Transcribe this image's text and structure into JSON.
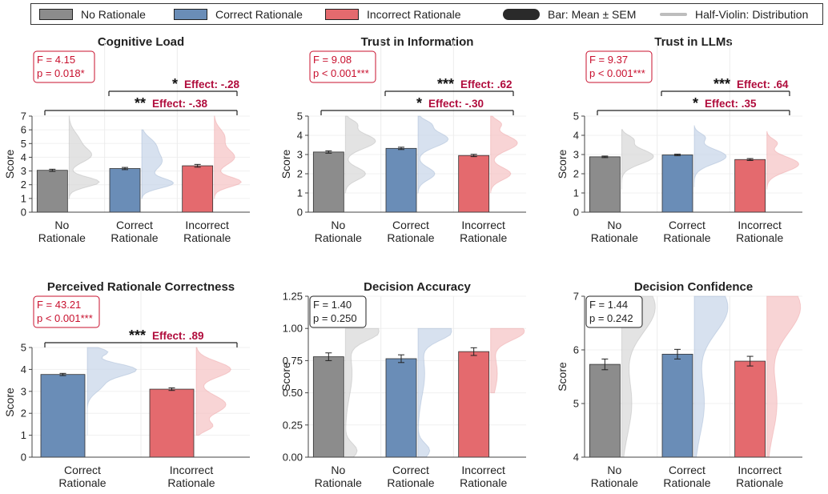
{
  "legend": {
    "items": [
      {
        "kind": "swatch",
        "label": "No Rationale",
        "color": "#8c8c8c"
      },
      {
        "kind": "swatch",
        "label": "Correct Rationale",
        "color": "#6a8db7"
      },
      {
        "kind": "swatch",
        "label": "Incorrect Rationale",
        "color": "#e46a6e"
      },
      {
        "kind": "pill",
        "label": "Bar: Mean ± SEM"
      },
      {
        "kind": "line",
        "label": "Half-Violin: Distribution"
      }
    ]
  },
  "colors": {
    "No Rationale": {
      "bar": "#8c8c8c",
      "violin": "#d9d9d9"
    },
    "Correct Rationale": {
      "bar": "#6a8db7",
      "violin": "#c9d7ea"
    },
    "Incorrect Rationale": {
      "bar": "#e46a6e",
      "violin": "#f6c6c7"
    },
    "stats_red": "#c8102e",
    "sig_red": "#b00c3c"
  },
  "chart_data": [
    {
      "type": "bar",
      "title": "Cognitive Load",
      "ylabel": "Score",
      "categories": [
        "No\nRationale",
        "Correct\nRationale",
        "Incorrect\nRationale"
      ],
      "values": [
        3.05,
        3.18,
        3.38
      ],
      "sem": [
        0.08,
        0.08,
        0.1
      ],
      "ylim": [
        0,
        7
      ],
      "yticks": [
        0,
        1,
        2,
        3,
        4,
        5,
        6,
        7
      ],
      "stats": {
        "F": "F = 4.15",
        "p": "p = 0.018*",
        "significant": true
      },
      "violins": [
        {
          "range": [
            1,
            7
          ],
          "bulges": [
            [
              2.2,
              0.9,
              0.5
            ],
            [
              4.1,
              0.6,
              0.7
            ],
            [
              5.2,
              0.3,
              0.9
            ]
          ]
        },
        {
          "range": [
            1,
            6
          ],
          "bulges": [
            [
              2.1,
              0.9,
              0.5
            ],
            [
              3.7,
              0.6,
              1.0
            ],
            [
              5.0,
              0.3,
              0.7
            ]
          ]
        },
        {
          "range": [
            1,
            7
          ],
          "bulges": [
            [
              2.2,
              0.8,
              0.5
            ],
            [
              4.0,
              0.6,
              0.8
            ],
            [
              5.5,
              0.3,
              0.8
            ]
          ]
        }
      ],
      "brackets": [
        {
          "from": 1,
          "to": 2,
          "stars": "*",
          "effect": "Effect: -.28",
          "y": 6.95
        },
        {
          "from": 0,
          "to": 2,
          "stars": "**",
          "effect": "Effect: -.38",
          "y": 5.9
        }
      ]
    },
    {
      "type": "bar",
      "title": "Trust in Information",
      "ylabel": "Score",
      "categories": [
        "No\nRationale",
        "Correct\nRationale",
        "Incorrect\nRationale"
      ],
      "values": [
        3.13,
        3.32,
        2.95
      ],
      "sem": [
        0.06,
        0.06,
        0.06
      ],
      "ylim": [
        0,
        5
      ],
      "yticks": [
        0,
        1,
        2,
        3,
        4,
        5
      ],
      "stats": {
        "F": "F = 9.08",
        "p": "p < 0.001***",
        "significant": true
      },
      "violins": [
        {
          "range": [
            1,
            5
          ],
          "bulges": [
            [
              2.0,
              0.6,
              0.45
            ],
            [
              3.7,
              0.9,
              0.55
            ],
            [
              4.6,
              0.3,
              0.3
            ]
          ]
        },
        {
          "range": [
            1,
            5
          ],
          "bulges": [
            [
              2.0,
              0.5,
              0.45
            ],
            [
              3.8,
              0.9,
              0.55
            ],
            [
              4.6,
              0.3,
              0.3
            ]
          ]
        },
        {
          "range": [
            1,
            5
          ],
          "bulges": [
            [
              2.0,
              0.6,
              0.45
            ],
            [
              3.6,
              0.8,
              0.55
            ],
            [
              4.6,
              0.3,
              0.3
            ]
          ]
        }
      ],
      "brackets": [
        {
          "from": 1,
          "to": 2,
          "stars": "***",
          "effect": "Effect: .62",
          "y": 6.3
        },
        {
          "from": 0,
          "to": 1,
          "stars": "*",
          "effect": "Effect: -.30",
          "y": 5.3
        }
      ]
    },
    {
      "type": "bar",
      "title": "Trust in LLMs",
      "ylabel": "Score",
      "categories": [
        "No\nRationale",
        "Correct\nRationale",
        "Incorrect\nRationale"
      ],
      "values": [
        2.88,
        2.98,
        2.74
      ],
      "sem": [
        0.04,
        0.04,
        0.05
      ],
      "ylim": [
        0,
        5
      ],
      "yticks": [
        0,
        1,
        2,
        3,
        4,
        5
      ],
      "stats": {
        "F": "F = 9.37",
        "p": "p < 0.001***",
        "significant": true
      },
      "violins": [
        {
          "range": [
            1.2,
            4.3
          ],
          "bulges": [
            [
              2.9,
              0.95,
              0.55
            ],
            [
              3.8,
              0.3,
              0.3
            ]
          ]
        },
        {
          "range": [
            1.3,
            4.5
          ],
          "bulges": [
            [
              2.9,
              0.95,
              0.55
            ],
            [
              3.9,
              0.3,
              0.3
            ]
          ]
        },
        {
          "range": [
            1.2,
            4.2
          ],
          "bulges": [
            [
              2.5,
              0.95,
              0.55
            ],
            [
              3.6,
              0.3,
              0.3
            ]
          ]
        }
      ],
      "brackets": [
        {
          "from": 1,
          "to": 2,
          "stars": "***",
          "effect": "Effect: .64",
          "y": 6.2
        },
        {
          "from": 0,
          "to": 2,
          "stars": "*",
          "effect": "Effect: .35",
          "y": 5.2
        }
      ]
    },
    {
      "type": "bar",
      "title": "Perceived Rationale Correctness",
      "ylabel": "Score",
      "categories": [
        "Correct\nRationale",
        "Incorrect\nRationale"
      ],
      "values": [
        3.77,
        3.1
      ],
      "sem": [
        0.05,
        0.06
      ],
      "ylim": [
        0,
        5
      ],
      "yticks": [
        0,
        1,
        2,
        3,
        4,
        5
      ],
      "stats": {
        "F": "F = 43.21",
        "p": "p < 0.001***",
        "significant": true
      },
      "violins": [
        {
          "range": [
            1,
            5
          ],
          "bulges": [
            [
              4.0,
              0.95,
              0.4
            ],
            [
              4.8,
              0.4,
              0.25
            ],
            [
              3.3,
              0.3,
              0.5
            ]
          ]
        },
        {
          "range": [
            1,
            5
          ],
          "bulges": [
            [
              4.0,
              0.7,
              0.5
            ],
            [
              2.4,
              0.6,
              0.6
            ],
            [
              1.4,
              0.3,
              0.3
            ]
          ]
        }
      ],
      "brackets": [
        {
          "from": 0,
          "to": 1,
          "stars": "***",
          "effect": "Effect: .89",
          "y": 5.8
        }
      ]
    },
    {
      "type": "bar",
      "title": "Decision Accuracy",
      "ylabel": "Score",
      "categories": [
        "No\nRationale",
        "Correct\nRationale",
        "Incorrect\nRationale"
      ],
      "values": [
        0.78,
        0.765,
        0.82
      ],
      "sem": [
        0.03,
        0.03,
        0.03
      ],
      "ylim": [
        0,
        1.25
      ],
      "yticks": [
        0.0,
        0.25,
        0.5,
        0.75,
        1.0,
        1.25
      ],
      "ytick_labels": [
        "0.00",
        "0.25",
        "0.50",
        "0.75",
        "1.00",
        "1.25"
      ],
      "stats": {
        "F": "F = 1.40",
        "p": "p = 0.250",
        "significant": false
      },
      "violins": [
        {
          "range": [
            0,
            1
          ],
          "bulges": [
            [
              0.98,
              1.0,
              0.1
            ],
            [
              0.65,
              0.2,
              0.25
            ],
            [
              0.05,
              0.35,
              0.08
            ]
          ]
        },
        {
          "range": [
            0,
            1
          ],
          "bulges": [
            [
              0.98,
              1.0,
              0.1
            ],
            [
              0.65,
              0.2,
              0.25
            ],
            [
              0.05,
              0.35,
              0.08
            ]
          ]
        },
        {
          "range": [
            0.5,
            1
          ],
          "bulges": [
            [
              0.98,
              1.0,
              0.1
            ],
            [
              0.65,
              0.2,
              0.2
            ]
          ]
        }
      ],
      "brackets": []
    },
    {
      "type": "bar",
      "title": "Decision Confidence",
      "ylabel": "Score",
      "categories": [
        "No\nRationale",
        "Correct\nRationale",
        "Incorrect\nRationale"
      ],
      "values": [
        5.73,
        5.92,
        5.79
      ],
      "sem": [
        0.1,
        0.09,
        0.09
      ],
      "ylim": [
        4,
        7
      ],
      "yticks": [
        4,
        5,
        6,
        7
      ],
      "stats": {
        "F": "F = 1.44",
        "p": "p = 0.242",
        "significant": false
      },
      "violins": [
        {
          "range": [
            4,
            7
          ],
          "bulges": [
            [
              6.8,
              1.0,
              0.7
            ],
            [
              5.0,
              0.3,
              0.8
            ]
          ]
        },
        {
          "range": [
            4,
            7
          ],
          "bulges": [
            [
              6.8,
              1.0,
              0.7
            ],
            [
              5.0,
              0.3,
              0.8
            ]
          ]
        },
        {
          "range": [
            4,
            7
          ],
          "bulges": [
            [
              6.8,
              1.0,
              0.7
            ],
            [
              5.0,
              0.3,
              0.8
            ]
          ]
        }
      ],
      "brackets": []
    }
  ]
}
